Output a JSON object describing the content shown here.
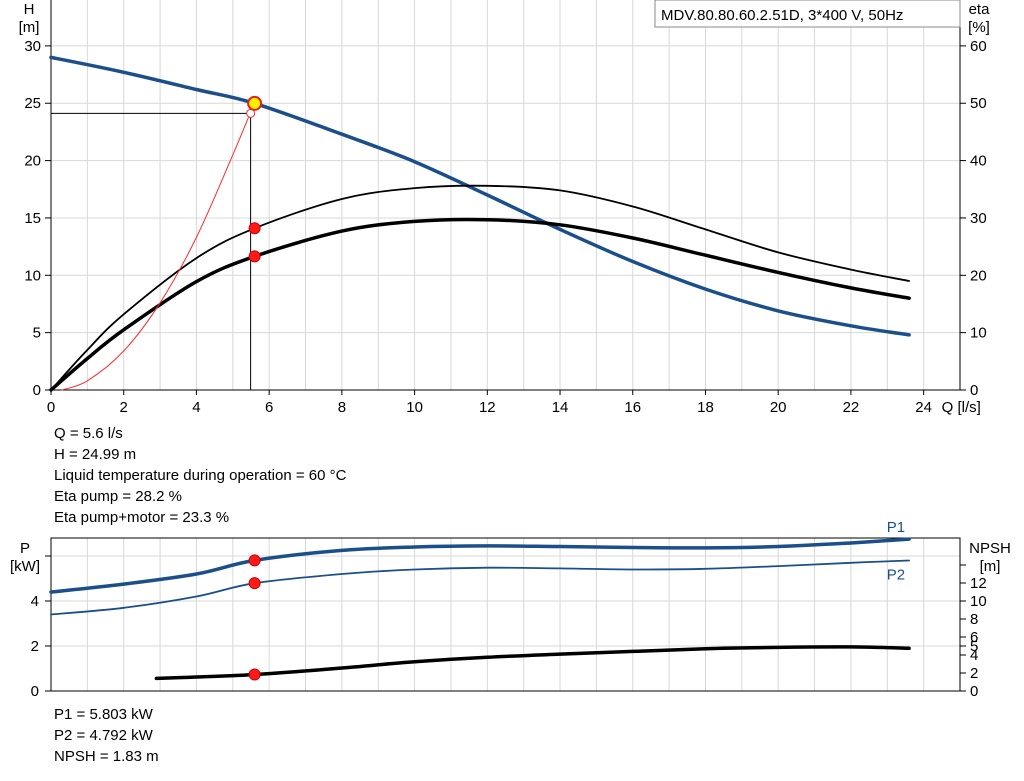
{
  "chart_data": [
    {
      "type": "line",
      "title": "MDV.80.80.60.2.51D, 3*400 V, 50Hz",
      "xlabel": "Q [l/s]",
      "ylabel_left": "H\n[m]",
      "ylabel_right": "eta\n[%]",
      "xlim": [
        0,
        25
      ],
      "ylim_left": [
        0,
        34
      ],
      "ylim_right": [
        0,
        68
      ],
      "xticks": [
        0,
        2,
        4,
        6,
        8,
        10,
        12,
        14,
        16,
        18,
        20,
        22,
        24
      ],
      "yticks_left": [
        0,
        5,
        10,
        15,
        20,
        25,
        30
      ],
      "yticks_right": [
        0,
        10,
        20,
        30,
        40,
        50,
        60
      ],
      "grid": true,
      "series": [
        {
          "axis": "left",
          "color": "#1a4f8c",
          "width": 3.5,
          "x": [
            0,
            2,
            4,
            5.6,
            8,
            10,
            12,
            14,
            16,
            18,
            20,
            22,
            23.6
          ],
          "y": [
            29.0,
            27.7,
            26.2,
            24.99,
            22.3,
            19.9,
            17.0,
            14.0,
            11.2,
            8.8,
            6.9,
            5.6,
            4.8
          ]
        },
        {
          "axis": "right",
          "color": "#000000",
          "width": 1.8,
          "x": [
            0,
            1,
            2,
            4,
            5.6,
            8,
            10,
            12,
            14,
            16,
            18,
            20,
            22,
            23.6
          ],
          "y": [
            0,
            7,
            13.2,
            23,
            28.2,
            33.3,
            35.2,
            35.6,
            34.8,
            32.0,
            28.0,
            24.0,
            21.0,
            19.0
          ]
        },
        {
          "axis": "right",
          "color": "#000000",
          "width": 3.5,
          "x": [
            0,
            1,
            2,
            4,
            5.6,
            8,
            10,
            12,
            14,
            16,
            18,
            20,
            22,
            23.6
          ],
          "y": [
            0,
            5.5,
            10.5,
            18.9,
            23.3,
            27.7,
            29.4,
            29.7,
            28.8,
            26.5,
            23.5,
            20.5,
            17.8,
            16.0
          ]
        },
        {
          "axis": "left",
          "color": "#ff2a2a",
          "width": 1,
          "x": [
            0.3,
            1,
            2,
            3,
            4,
            5,
            5.5
          ],
          "y": [
            0,
            0.8,
            3.4,
            7.6,
            13.3,
            20.5,
            24.3
          ]
        }
      ],
      "operating_point": {
        "q": 5.6,
        "h": 24.99,
        "eta_pump": 28.2,
        "eta_total": 23.3
      },
      "readout": [
        "Q = 5.6 l/s",
        "H = 24.99 m",
        "Liquid temperature during operation = 60 °C",
        "Eta pump = 28.2 %",
        "Eta pump+motor = 23.3 %"
      ]
    },
    {
      "type": "line",
      "ylabel_left": "P\n[kW]",
      "ylabel_right": "NPSH\n[m]",
      "xlim": [
        0,
        25
      ],
      "ylim_left": [
        0,
        6.8
      ],
      "ylim_right": [
        0,
        17
      ],
      "yticks_left": [
        0,
        2,
        4
      ],
      "yticks_right": [
        0,
        2,
        4,
        5,
        6,
        8,
        10,
        12,
        14
      ],
      "yticks_right_labels": [
        "0",
        "2",
        "4",
        "5",
        "6",
        "8",
        "10",
        "12",
        ""
      ],
      "grid": true,
      "series": [
        {
          "name": "P1",
          "axis": "left",
          "color": "#1a4f8c",
          "width": 3.5,
          "x": [
            0,
            2,
            4,
            5.6,
            8,
            10,
            12,
            14,
            16,
            18,
            20,
            22,
            23.6
          ],
          "y": [
            4.4,
            4.75,
            5.2,
            5.803,
            6.25,
            6.4,
            6.45,
            6.42,
            6.38,
            6.36,
            6.42,
            6.58,
            6.75
          ]
        },
        {
          "name": "P2",
          "axis": "left",
          "color": "#1a4f8c",
          "width": 1.8,
          "x": [
            0,
            2,
            4,
            5.6,
            8,
            10,
            12,
            14,
            16,
            18,
            20,
            22,
            23.6
          ],
          "y": [
            3.4,
            3.7,
            4.2,
            4.792,
            5.2,
            5.4,
            5.48,
            5.45,
            5.4,
            5.43,
            5.55,
            5.7,
            5.8
          ]
        },
        {
          "name": "NPSH",
          "axis": "right",
          "color": "#000000",
          "width": 3.5,
          "x": [
            2.9,
            4,
            5.6,
            8,
            10,
            12,
            14,
            16,
            18,
            20,
            22,
            23.6
          ],
          "y": [
            1.4,
            1.55,
            1.83,
            2.55,
            3.25,
            3.75,
            4.1,
            4.4,
            4.7,
            4.85,
            4.9,
            4.75
          ]
        }
      ],
      "operating_point": {
        "q": 5.6,
        "p1": 5.803,
        "p2": 4.792,
        "npsh": 1.83
      },
      "readout": [
        "P1 = 5.803 kW",
        "P2 = 4.792 kW",
        "NPSH = 1.83 m"
      ]
    }
  ]
}
